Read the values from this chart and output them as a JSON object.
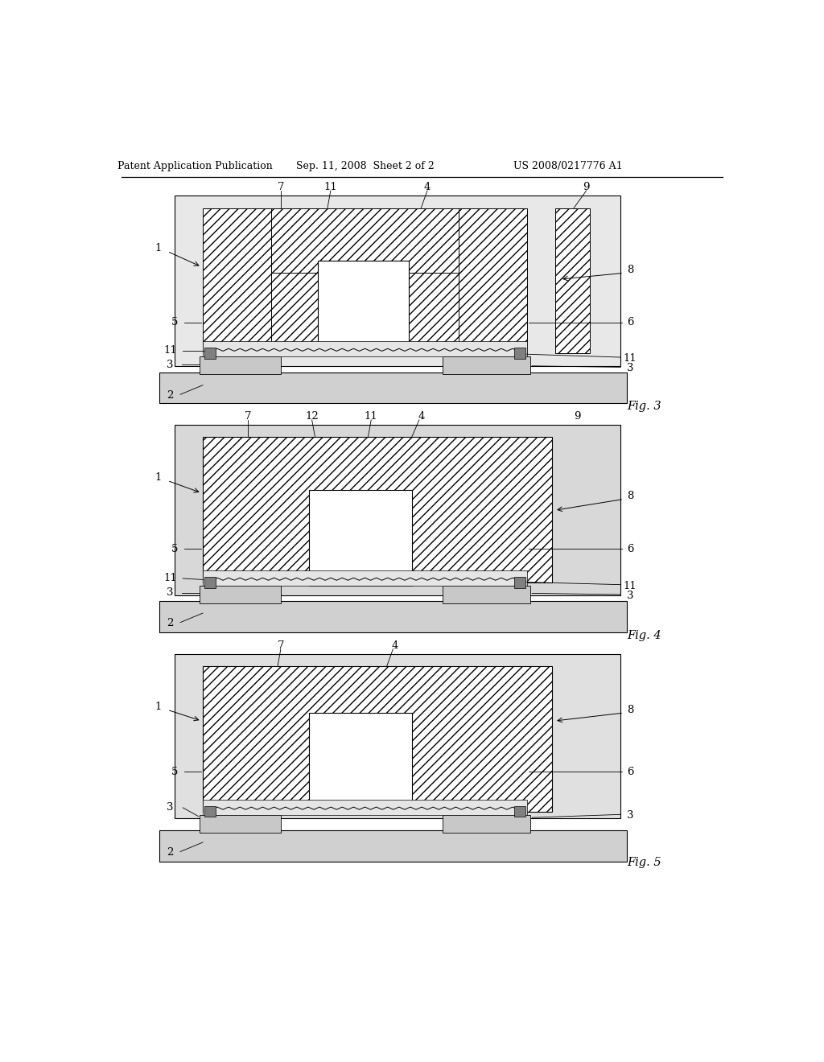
{
  "bg": "#ffffff",
  "header_left": "Patent Application Publication",
  "header_center": "Sep. 11, 2008  Sheet 2 of 2",
  "header_right": "US 2008/0217776 A1",
  "fig3_label": "Fig. 3",
  "fig4_label": "Fig. 4",
  "fig5_label": "Fig. 5",
  "gray_light": "#d0d0d0",
  "gray_mid": "#b8b8b8",
  "gray_dark": "#909090",
  "gray_substrate": "#c8c8c8",
  "gray_box": "#e0e0e0",
  "fig3_outer_bg": "#e8e8e8",
  "fig4_outer_bg": "#d8d8d8",
  "fig5_outer_bg": "#e0e0e0"
}
